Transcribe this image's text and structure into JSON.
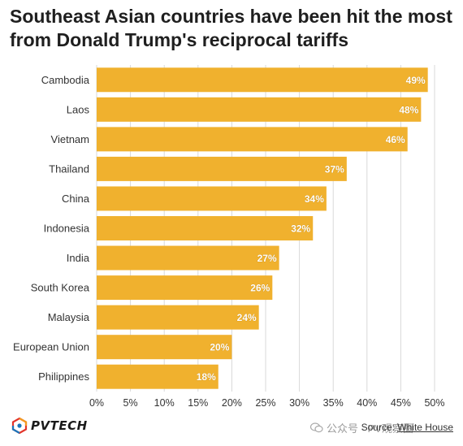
{
  "title": "Southeast Asian countries have been hit the most from Donald Trump's reciprocal tariffs",
  "chart_data": {
    "type": "bar",
    "orientation": "horizontal",
    "title": "Southeast Asian countries have been hit the most from Donald Trump's reciprocal tariffs",
    "categories": [
      "Cambodia",
      "Laos",
      "Vietnam",
      "Thailand",
      "China",
      "Indonesia",
      "India",
      "South Korea",
      "Malaysia",
      "European Union",
      "Philippines"
    ],
    "values": [
      49,
      48,
      46,
      37,
      34,
      32,
      27,
      26,
      24,
      20,
      18
    ],
    "data_labels": [
      "49%",
      "48%",
      "46%",
      "37%",
      "34%",
      "32%",
      "27%",
      "26%",
      "24%",
      "20%",
      "18%"
    ],
    "x_ticks": [
      "0%",
      "5%",
      "10%",
      "15%",
      "20%",
      "25%",
      "30%",
      "35%",
      "40%",
      "45%",
      "50%"
    ],
    "xlim": [
      0,
      50
    ],
    "grid": true,
    "bar_color": "#F0B12E",
    "xlabel": "",
    "ylabel": ""
  },
  "footer": {
    "logo_text": "PVTECH",
    "watermark": "公众号 · PV观察圈",
    "source_label": "Source:",
    "source_name": "White House"
  },
  "colors": {
    "logo_red": "#E2342B",
    "logo_orange": "#F39A1F",
    "logo_blue": "#1B75BB"
  }
}
